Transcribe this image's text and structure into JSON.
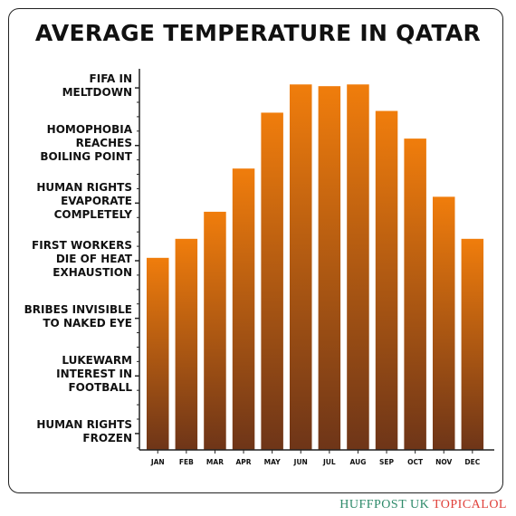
{
  "chart_data": {
    "type": "bar",
    "title": "AVERAGE TEMPERATURE IN QATAR",
    "categories": [
      "JAN",
      "FEB",
      "MAR",
      "APR",
      "MAY",
      "JUN",
      "JUL",
      "AUG",
      "SEP",
      "OCT",
      "NOV",
      "DEC"
    ],
    "values": [
      3.05,
      3.38,
      3.85,
      4.6,
      5.57,
      6.06,
      6.03,
      6.06,
      5.6,
      5.12,
      4.11,
      3.38
    ],
    "y_ticks": [
      "HUMAN RIGHTS\nFROZEN",
      "LUKEWARM\nINTEREST IN\nFOOTBALL",
      "BRIBES INVISIBLE\nTO NAKED EYE",
      "FIRST WORKERS\nDIE OF HEAT\nEXHAUSTION",
      "HUMAN RIGHTS\nEVAPORATE\nCOMPLETELY",
      "HOMOPHOBIA\nREACHES\nBOILING POINT",
      "FIFA IN\nMELTDOWN"
    ],
    "ylim": [
      -0.3,
      6.3
    ],
    "bar_gradient": {
      "top": "#f07d0c",
      "bottom": "#6e3518"
    },
    "grid": false
  },
  "credit": {
    "brand": "HUFFPOST UK",
    "sub": "TOPICALOL"
  }
}
